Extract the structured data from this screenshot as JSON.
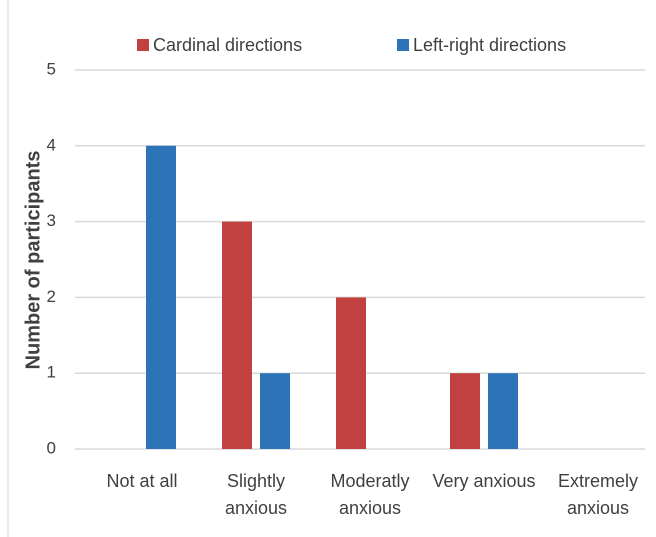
{
  "chart_data": {
    "type": "bar",
    "y_label": "Number of participants",
    "categories": [
      "Not at all",
      "Slightly anxious",
      "Moderatly anxious",
      "Very anxious",
      "Extremely anxious"
    ],
    "series": [
      {
        "name": "Cardinal directions",
        "color": "#c0413f",
        "values": [
          0,
          3,
          2,
          1,
          0
        ]
      },
      {
        "name": "Left-right directions",
        "color": "#2c73b8",
        "values": [
          4,
          1,
          0,
          1,
          0
        ]
      }
    ],
    "ylim": [
      0,
      5
    ],
    "yticks": [
      0,
      1,
      2,
      3,
      4,
      5
    ],
    "grid": true,
    "legend": "top"
  }
}
